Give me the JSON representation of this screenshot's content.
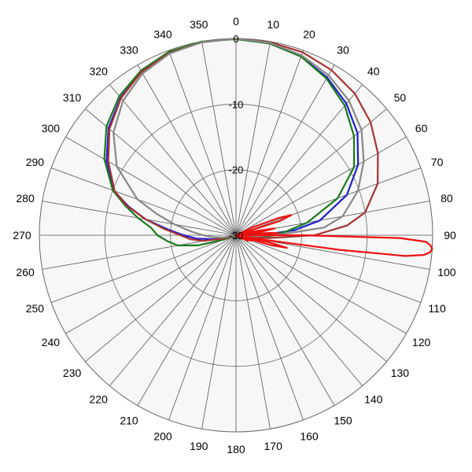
{
  "chart_data": {
    "type": "polar-line",
    "title": "",
    "angle_direction": "clockwise",
    "zero_at": "top",
    "angle_ticks": [
      0,
      10,
      20,
      30,
      40,
      50,
      60,
      70,
      80,
      90,
      100,
      110,
      120,
      130,
      140,
      150,
      160,
      170,
      180,
      190,
      200,
      210,
      220,
      230,
      240,
      250,
      260,
      270,
      280,
      290,
      300,
      310,
      320,
      330,
      340,
      350
    ],
    "angle_tick_labels": [
      "0",
      "10",
      "20",
      "30",
      "40",
      "50",
      "60",
      "70",
      "80",
      "90",
      "100",
      "110",
      "120",
      "130",
      "140",
      "150",
      "160",
      "170",
      "180",
      "190",
      "200",
      "210",
      "220",
      "230",
      "240",
      "250",
      "260",
      "270",
      "280",
      "290",
      "300",
      "310",
      "320",
      "330",
      "340",
      "350"
    ],
    "radial_range": [
      -30,
      0
    ],
    "radial_ticks": [
      -30,
      -20,
      -10,
      0
    ],
    "radial_tick_labels": [
      "-30",
      "-20",
      "-10",
      "0"
    ],
    "grid": true,
    "series": [
      {
        "color": "#1f1fd0",
        "points": [
          [
            0,
            0
          ],
          [
            10,
            -0.3
          ],
          [
            20,
            -1.0
          ],
          [
            30,
            -2.2
          ],
          [
            40,
            -3.8
          ],
          [
            50,
            -5.8
          ],
          [
            60,
            -8.5
          ],
          [
            70,
            -12.0
          ],
          [
            80,
            -17.0
          ],
          [
            85,
            -21.0
          ],
          [
            90,
            -26.0
          ],
          [
            95,
            -28.0
          ],
          [
            100,
            -29.0
          ],
          [
            105,
            -30.0
          ],
          [
            250,
            -30.0
          ],
          [
            255,
            -29.0
          ],
          [
            260,
            -26.5
          ],
          [
            265,
            -24.0
          ],
          [
            270,
            -22.0
          ],
          [
            275,
            -19.5
          ],
          [
            280,
            -16.0
          ],
          [
            285,
            -13.0
          ],
          [
            290,
            -10.2
          ],
          [
            300,
            -7.2
          ],
          [
            310,
            -4.6
          ],
          [
            320,
            -2.6
          ],
          [
            330,
            -1.2
          ],
          [
            340,
            -0.4
          ],
          [
            350,
            -0.1
          ],
          [
            360,
            0
          ]
        ]
      },
      {
        "color": "#1a7a1a",
        "points": [
          [
            0,
            -0.1
          ],
          [
            10,
            -0.3
          ],
          [
            20,
            -1.0
          ],
          [
            30,
            -2.4
          ],
          [
            40,
            -4.2
          ],
          [
            50,
            -6.5
          ],
          [
            60,
            -9.2
          ],
          [
            70,
            -13.5
          ],
          [
            80,
            -19.0
          ],
          [
            85,
            -22.0
          ],
          [
            90,
            -24.0
          ],
          [
            95,
            -26.0
          ],
          [
            100,
            -27.5
          ],
          [
            105,
            -29.0
          ],
          [
            110,
            -30.0
          ],
          [
            245,
            -30.0
          ],
          [
            250,
            -28.0
          ],
          [
            255,
            -24.0
          ],
          [
            260,
            -21.0
          ],
          [
            265,
            -19.5
          ],
          [
            270,
            -18.0
          ],
          [
            275,
            -17.0
          ],
          [
            280,
            -14.8
          ],
          [
            285,
            -12.5
          ],
          [
            290,
            -10.0
          ],
          [
            300,
            -6.8
          ],
          [
            310,
            -4.2
          ],
          [
            320,
            -2.3
          ],
          [
            330,
            -1.0
          ],
          [
            340,
            -0.2
          ],
          [
            350,
            0
          ],
          [
            360,
            -0.1
          ]
        ]
      },
      {
        "color": "#a83232",
        "points": [
          [
            0,
            0
          ],
          [
            10,
            -0.1
          ],
          [
            20,
            -0.3
          ],
          [
            30,
            -0.9
          ],
          [
            40,
            -1.8
          ],
          [
            50,
            -3.2
          ],
          [
            60,
            -5.0
          ],
          [
            70,
            -7.0
          ],
          [
            80,
            -10.0
          ],
          [
            85,
            -13.0
          ],
          [
            90,
            -18.0
          ],
          [
            95,
            -25.0
          ],
          [
            100,
            -29.0
          ],
          [
            105,
            -30.0
          ],
          [
            250,
            -30.0
          ],
          [
            255,
            -28.0
          ],
          [
            260,
            -25.0
          ],
          [
            265,
            -23.0
          ],
          [
            270,
            -21.5
          ],
          [
            275,
            -19.0
          ],
          [
            280,
            -16.0
          ],
          [
            285,
            -12.8
          ],
          [
            290,
            -10.3
          ],
          [
            300,
            -7.5
          ],
          [
            310,
            -4.8
          ],
          [
            320,
            -2.7
          ],
          [
            330,
            -1.2
          ],
          [
            340,
            -0.4
          ],
          [
            350,
            -0.1
          ],
          [
            360,
            0
          ]
        ]
      },
      {
        "color": "#888888",
        "points": [
          [
            0,
            0
          ],
          [
            10,
            -0.2
          ],
          [
            20,
            -0.8
          ],
          [
            30,
            -1.8
          ],
          [
            40,
            -3.2
          ],
          [
            50,
            -5.0
          ],
          [
            60,
            -7.5
          ],
          [
            70,
            -10.2
          ],
          [
            80,
            -13.5
          ],
          [
            85,
            -16.5
          ],
          [
            90,
            -24.0
          ],
          [
            95,
            -28.0
          ],
          [
            100,
            -30.0
          ],
          [
            255,
            -30.0
          ],
          [
            260,
            -28.0
          ],
          [
            265,
            -26.5
          ],
          [
            270,
            -25.0
          ],
          [
            275,
            -23.0
          ],
          [
            280,
            -20.5
          ],
          [
            285,
            -17.5
          ],
          [
            290,
            -14.0
          ],
          [
            300,
            -9.0
          ],
          [
            310,
            -5.6
          ],
          [
            320,
            -3.2
          ],
          [
            330,
            -1.5
          ],
          [
            340,
            -0.5
          ],
          [
            350,
            -0.1
          ],
          [
            360,
            0
          ]
        ]
      },
      {
        "color": "#ee1111",
        "points": [
          [
            60,
            -30
          ],
          [
            65,
            -27.0
          ],
          [
            68,
            -23.0
          ],
          [
            70,
            -21.0
          ],
          [
            72,
            -23.0
          ],
          [
            75,
            -30
          ],
          [
            78,
            -27.0
          ],
          [
            80,
            -24.0
          ],
          [
            82,
            -26.0
          ],
          [
            84,
            -30
          ],
          [
            86,
            -25.0
          ],
          [
            87,
            -23.5
          ],
          [
            88,
            -26.0
          ],
          [
            89,
            -30
          ],
          [
            90,
            -20.0
          ],
          [
            91,
            -5.0
          ],
          [
            92,
            -1.0
          ],
          [
            93,
            -0.3
          ],
          [
            94,
            0
          ],
          [
            95,
            -0.3
          ],
          [
            96,
            -1.2
          ],
          [
            97,
            -4.0
          ],
          [
            98,
            -14.0
          ],
          [
            99,
            -25.0
          ],
          [
            100,
            -30
          ],
          [
            102,
            -25.0
          ],
          [
            104,
            -22.0
          ],
          [
            106,
            -24.5
          ],
          [
            108,
            -30
          ],
          [
            110,
            -27.5
          ],
          [
            112,
            -30
          ],
          [
            115,
            -28.0
          ],
          [
            118,
            -30
          ],
          [
            125,
            -29.0
          ],
          [
            130,
            -30
          ],
          [
            140,
            -30
          ],
          [
            150,
            -30
          ],
          [
            160,
            -30
          ],
          [
            170,
            -30
          ],
          [
            180,
            -30
          ],
          [
            190,
            -30
          ],
          [
            200,
            -30
          ],
          [
            210,
            -30
          ],
          [
            220,
            -30
          ],
          [
            230,
            -30
          ],
          [
            240,
            -30
          ],
          [
            250,
            -30
          ],
          [
            260,
            -30
          ],
          [
            270,
            -30
          ],
          [
            280,
            -30
          ],
          [
            290,
            -30
          ],
          [
            300,
            -30
          ],
          [
            310,
            -30
          ],
          [
            320,
            -30
          ],
          [
            330,
            -30
          ],
          [
            340,
            -30
          ],
          [
            350,
            -30
          ],
          [
            0,
            -30
          ],
          [
            10,
            -30
          ],
          [
            20,
            -30
          ],
          [
            30,
            -30
          ],
          [
            40,
            -30
          ],
          [
            50,
            -30
          ],
          [
            60,
            -30
          ]
        ]
      }
    ]
  }
}
